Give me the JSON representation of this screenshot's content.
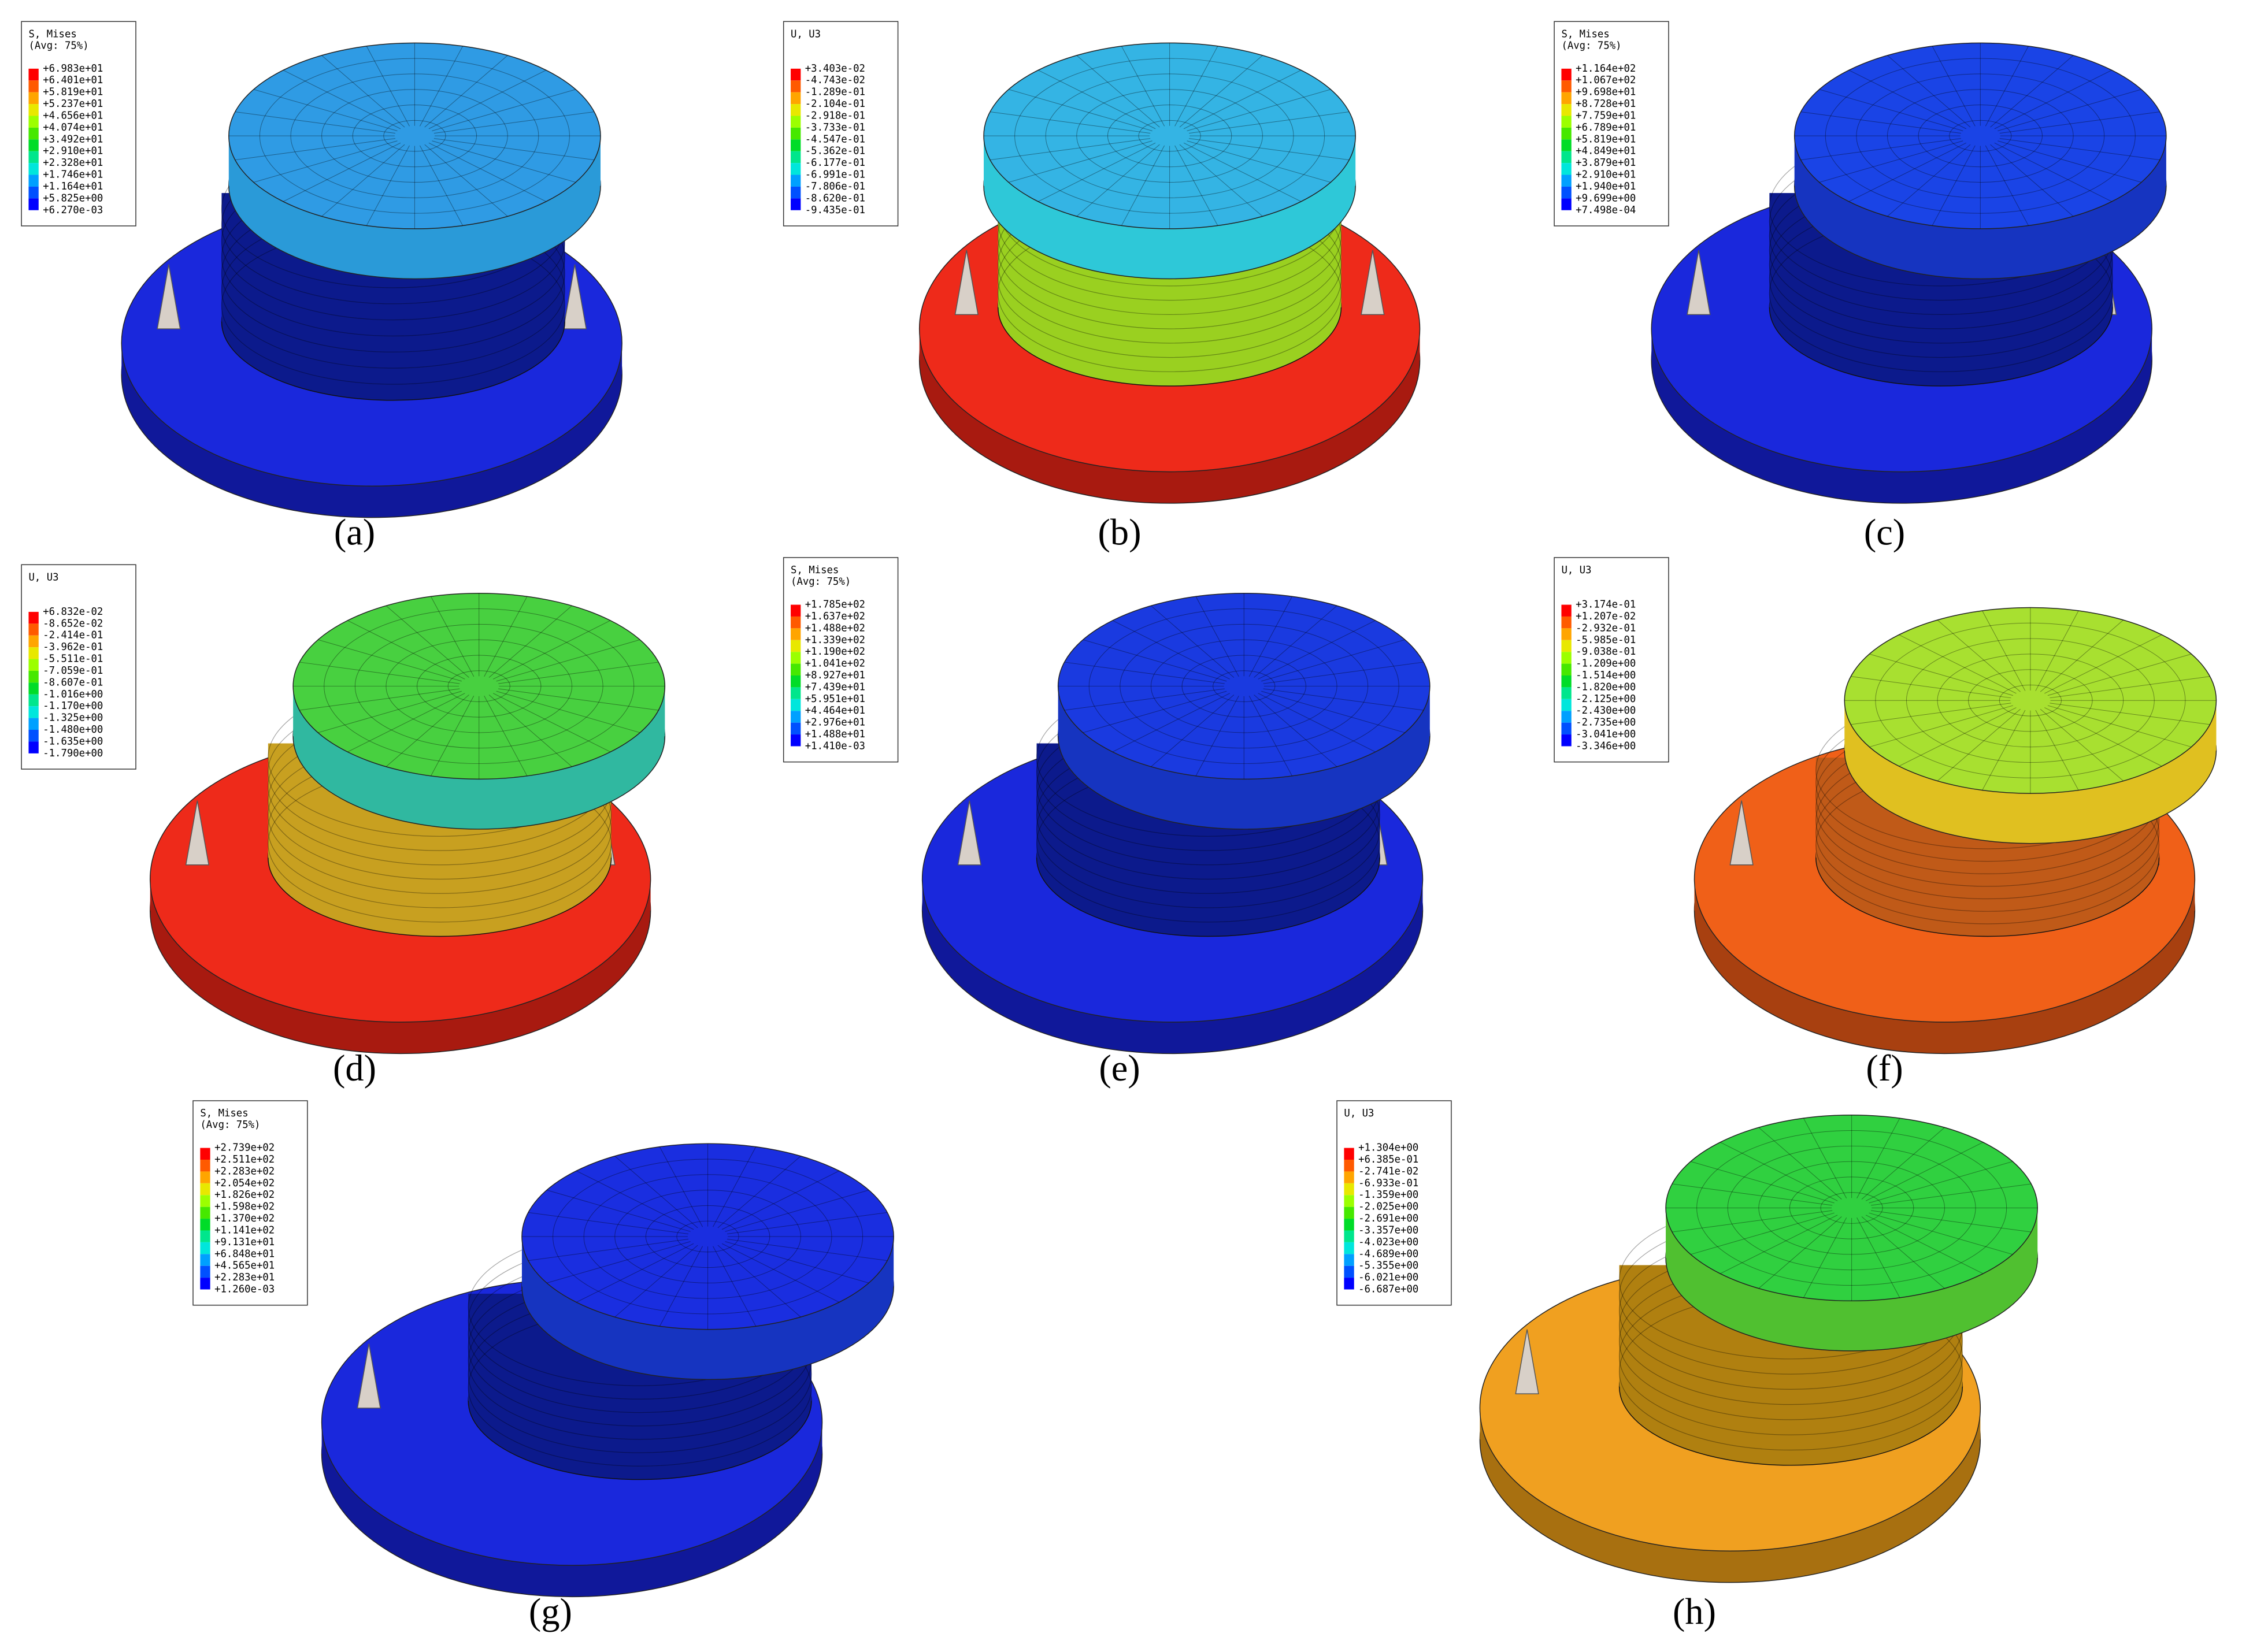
{
  "panels": [
    {
      "label": "(a)",
      "legend": {
        "title": "S, Mises",
        "subtitle": "(Avg: 75%)",
        "values": [
          "+6.983e+01",
          "+6.401e+01",
          "+5.819e+01",
          "+5.237e+01",
          "+4.656e+01",
          "+4.074e+01",
          "+3.492e+01",
          "+2.910e+01",
          "+2.328e+01",
          "+1.746e+01",
          "+1.164e+01",
          "+5.825e+00",
          "+6.270e-03"
        ]
      }
    },
    {
      "label": "(b)",
      "legend": {
        "title": "U, U3",
        "values": [
          "+3.403e-02",
          "-4.743e-02",
          "-1.289e-01",
          "-2.104e-01",
          "-2.918e-01",
          "-3.733e-01",
          "-4.547e-01",
          "-5.362e-01",
          "-6.177e-01",
          "-6.991e-01",
          "-7.806e-01",
          "-8.620e-01",
          "-9.435e-01"
        ]
      }
    },
    {
      "label": "(c)",
      "legend": {
        "title": "S, Mises",
        "subtitle": "(Avg: 75%)",
        "values": [
          "+1.164e+02",
          "+1.067e+02",
          "+9.698e+01",
          "+8.728e+01",
          "+7.759e+01",
          "+6.789e+01",
          "+5.819e+01",
          "+4.849e+01",
          "+3.879e+01",
          "+2.910e+01",
          "+1.940e+01",
          "+9.699e+00",
          "+7.498e-04"
        ]
      }
    },
    {
      "label": "(d)",
      "legend": {
        "title": "U, U3",
        "values": [
          "+6.832e-02",
          "-8.652e-02",
          "-2.414e-01",
          "-3.962e-01",
          "-5.511e-01",
          "-7.059e-01",
          "-8.607e-01",
          "-1.016e+00",
          "-1.170e+00",
          "-1.325e+00",
          "-1.480e+00",
          "-1.635e+00",
          "-1.790e+00"
        ]
      }
    },
    {
      "label": "(e)",
      "legend": {
        "title": "S, Mises",
        "subtitle": "(Avg: 75%)",
        "values": [
          "+1.785e+02",
          "+1.637e+02",
          "+1.488e+02",
          "+1.339e+02",
          "+1.190e+02",
          "+1.041e+02",
          "+8.927e+01",
          "+7.439e+01",
          "+5.951e+01",
          "+4.464e+01",
          "+2.976e+01",
          "+1.488e+01",
          "+1.410e-03"
        ]
      }
    },
    {
      "label": "(f)",
      "legend": {
        "title": "U, U3",
        "values": [
          "+3.174e-01",
          "+1.207e-02",
          "-2.932e-01",
          "-5.985e-01",
          "-9.038e-01",
          "-1.209e+00",
          "-1.514e+00",
          "-1.820e+00",
          "-2.125e+00",
          "-2.430e+00",
          "-2.735e+00",
          "-3.041e+00",
          "-3.346e+00"
        ]
      }
    },
    {
      "label": "(g)",
      "legend": {
        "title": "S, Mises",
        "subtitle": "(Avg: 75%)",
        "values": [
          "+2.739e+02",
          "+2.511e+02",
          "+2.283e+02",
          "+2.054e+02",
          "+1.826e+02",
          "+1.598e+02",
          "+1.370e+02",
          "+1.141e+02",
          "+9.131e+01",
          "+6.848e+01",
          "+4.565e+01",
          "+2.283e+01",
          "+1.260e-03"
        ]
      }
    },
    {
      "label": "(h)",
      "legend": {
        "title": "U, U3",
        "values": [
          "+1.304e+00",
          "+6.385e-01",
          "-2.741e-02",
          "-6.933e-01",
          "-1.359e+00",
          "-2.025e+00",
          "-2.691e+00",
          "-3.357e+00",
          "-4.023e+00",
          "-4.689e+00",
          "-5.355e+00",
          "-6.021e+00",
          "-6.687e+00"
        ]
      }
    }
  ]
}
